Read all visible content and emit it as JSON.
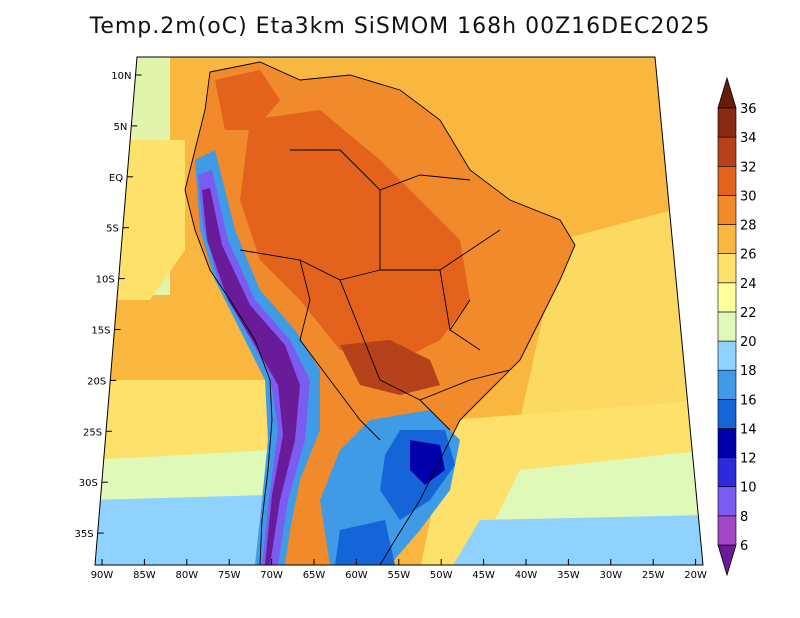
{
  "title": "Temp.2m(oC) Eta3km SiSMOM 168h 00Z16DEC2025",
  "axes": {
    "y_ticks": [
      "10N",
      "5N",
      "EQ",
      "5S",
      "10S",
      "15S",
      "20S",
      "25S",
      "30S",
      "35S"
    ],
    "x_ticks": [
      "90W",
      "85W",
      "80W",
      "75W",
      "70W",
      "65W",
      "60W",
      "55W",
      "50W",
      "45W",
      "40W",
      "35W",
      "30W",
      "25W",
      "20W"
    ]
  },
  "colorbar": {
    "levels": [
      "6",
      "8",
      "10",
      "12",
      "14",
      "16",
      "18",
      "20",
      "22",
      "24",
      "26",
      "28",
      "30",
      "32",
      "34",
      "36"
    ],
    "colors": [
      "#6a1b9a",
      "#a347c7",
      "#7b5cf0",
      "#2b2bd9",
      "#0000aa",
      "#1565d8",
      "#3f9be6",
      "#8fd1ff",
      "#dff9b8",
      "#ffff9c",
      "#fde16a",
      "#f9b73f",
      "#f08a2a",
      "#e3621c",
      "#b5421a",
      "#8a2a12",
      "#6b1a0a"
    ]
  },
  "map_colors": {
    "ocean_warm": "#f9b73f",
    "ocean_mid": "#fde16a",
    "ocean_cool": "#dff9b8",
    "ocean_south": "#8fd1ff",
    "land_hot": "#f08a2a",
    "land_very_hot": "#e3621c",
    "land_max": "#b5421a",
    "andes_high": "#6a1b9a",
    "andes_mid": "#7b5cf0",
    "andes_low": "#3f9be6",
    "south_cool": "#1565d8",
    "south_cold": "#0000aa",
    "outline": "#000000"
  }
}
